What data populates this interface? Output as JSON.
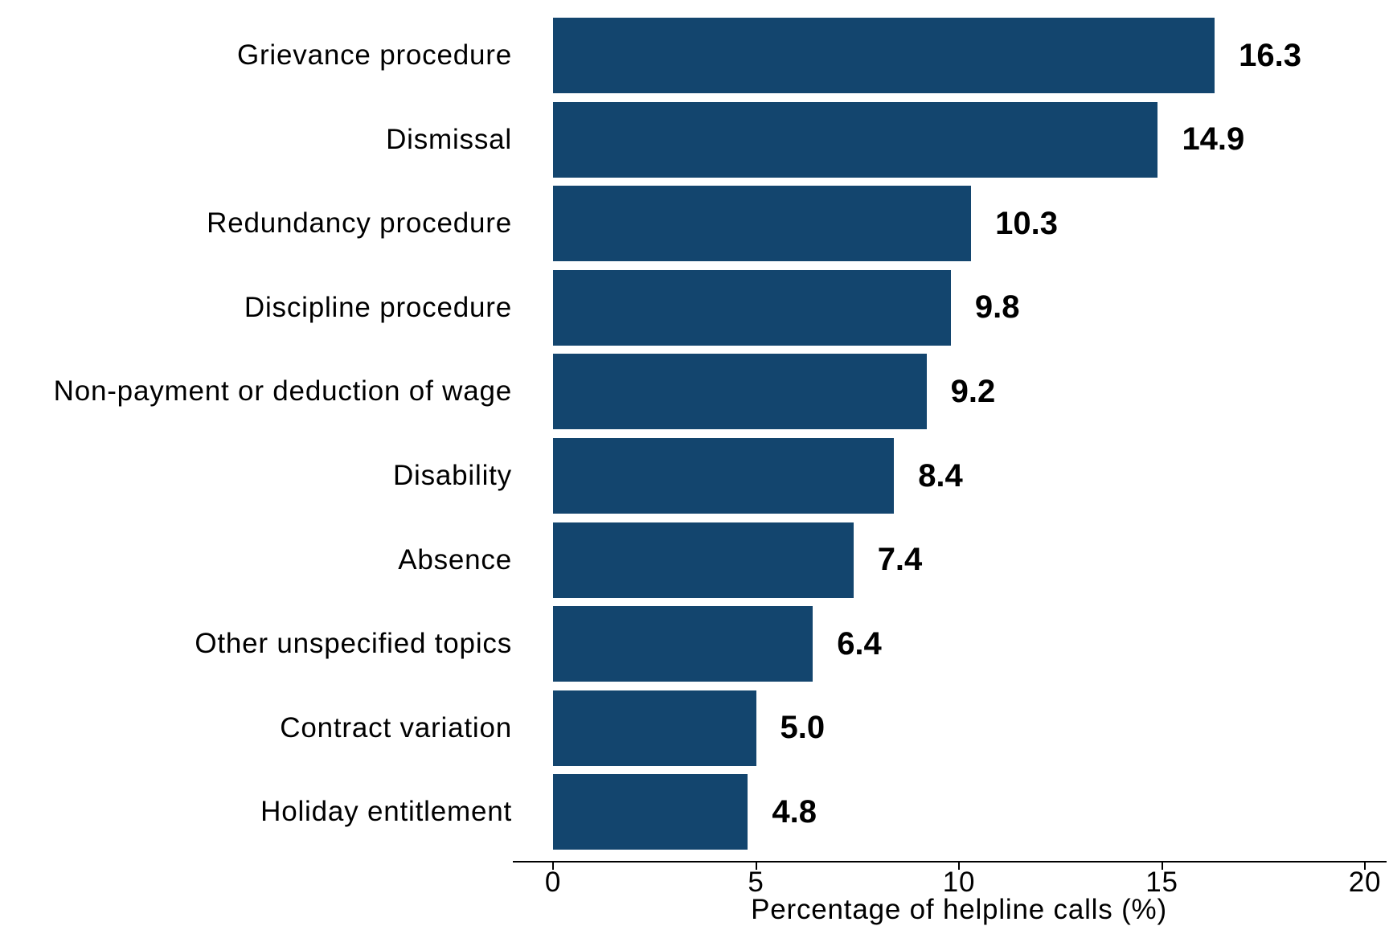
{
  "chart_data": {
    "type": "bar",
    "orientation": "horizontal",
    "title": "",
    "xlabel": "Percentage of helpline calls (%)",
    "ylabel": "",
    "categories": [
      "Grievance procedure",
      "Dismissal",
      "Redundancy procedure",
      "Discipline procedure",
      "Non-payment or deduction of wage",
      "Disability",
      "Absence",
      "Other unspecified topics",
      "Contract variation",
      "Holiday entitlement"
    ],
    "values": [
      16.3,
      14.9,
      10.3,
      9.8,
      9.2,
      8.4,
      7.4,
      6.4,
      5.0,
      4.8
    ],
    "value_labels": [
      "16.3",
      "14.9",
      "10.3",
      "9.8",
      "9.2",
      "8.4",
      "7.4",
      "6.4",
      "5.0",
      "4.8"
    ],
    "xlim": [
      0,
      20
    ],
    "xticks": [
      0,
      5,
      10,
      15,
      20
    ],
    "xtick_labels": [
      "0",
      "5",
      "10",
      "15",
      "20"
    ],
    "grid": false,
    "legend": false,
    "bar_color": "#13456E",
    "text_color": "#000000",
    "axis_color": "#000000"
  }
}
